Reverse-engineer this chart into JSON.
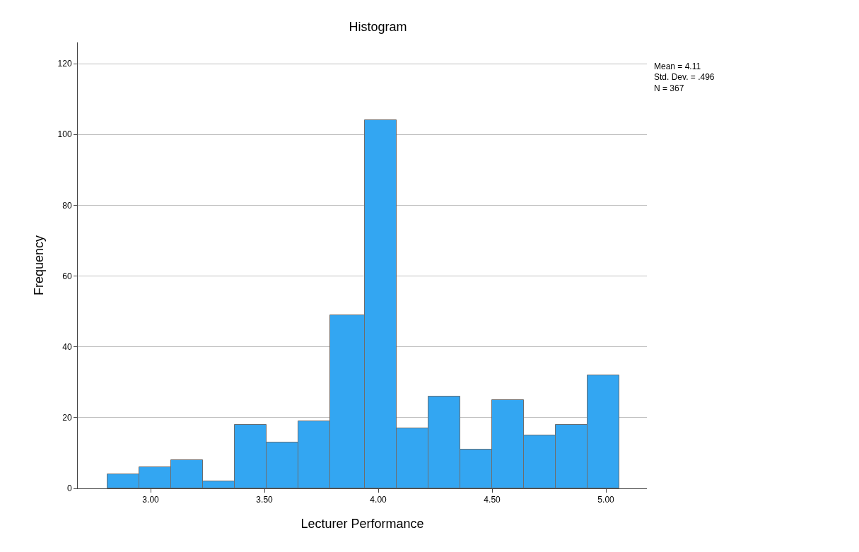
{
  "chart_data": {
    "type": "histogram",
    "title": "Histogram",
    "xlabel": "Lecturer Performance",
    "ylabel": "Frequency",
    "bins": [
      2.81,
      2.95,
      3.09,
      3.23,
      3.37,
      3.51,
      3.65,
      3.79,
      3.94,
      4.08,
      4.22,
      4.36,
      4.5,
      4.64,
      4.78,
      4.92,
      5.06
    ],
    "values": [
      4,
      6,
      8,
      2,
      18,
      13,
      19,
      49,
      104,
      17,
      26,
      11,
      25,
      15,
      18,
      32
    ],
    "color": "#33a6f2",
    "xlim": [
      2.68,
      5.18
    ],
    "xticks": [
      {
        "value": 3,
        "label": "3.00"
      },
      {
        "value": 3.5,
        "label": "3.50"
      },
      {
        "value": 4,
        "label": "4.00"
      },
      {
        "value": 4.5,
        "label": "4.50"
      },
      {
        "value": 5,
        "label": "5.00"
      }
    ],
    "ylim": [
      0,
      126
    ],
    "yticks": [
      0,
      20,
      40,
      60,
      80,
      100,
      120
    ],
    "grid": "y",
    "annotations": [
      "Mean = 4.11",
      "Std. Dev. = .496",
      "N = 367"
    ]
  }
}
